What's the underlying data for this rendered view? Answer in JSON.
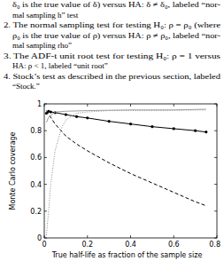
{
  "text_lines": [
    "δ₀ is the true value of δ) versus HA: δ ≠ δ₀, labeled “nor-",
    "mal sampling h” test",
    "2. The normal sampling test for testing H₀: ρ = ρ₀ (where",
    "ρ₀ is the true value of ρ) versus HA: ρ ≠ ρ₀, labeled “nor-",
    "mal sampling rho”",
    "3. The ADF-t unit root test for testing H₀: ρ = 1 versus",
    "HA: ρ < 1, labeled “unit root”",
    "4. Stock’s test as described in the previous section, labeled",
    "“Stock.”"
  ],
  "chart_data": {
    "type": "line",
    "x_label": "True half-life as fraction of the sample size",
    "y_label": "Monte Carlo coverage",
    "xlim": [
      0,
      0.8
    ],
    "ylim": [
      0,
      1
    ],
    "xticks": [
      0,
      0.2,
      0.4,
      0.6,
      0.8
    ],
    "yticks": [
      0,
      0.2,
      0.4,
      0.6,
      0.8,
      1
    ],
    "grid": false,
    "series": [
      {
        "color": "#000000",
        "line_style": "solid",
        "marker": "dot",
        "x": [
          0.01,
          0.02,
          0.03,
          0.05,
          0.1,
          0.15,
          0.2,
          0.3,
          0.4,
          0.5,
          0.6,
          0.7,
          0.75
        ],
        "values": [
          0.93,
          0.945,
          0.94,
          0.935,
          0.92,
          0.905,
          0.895,
          0.87,
          0.85,
          0.83,
          0.815,
          0.8,
          0.79
        ]
      },
      {
        "color": "#000000",
        "line_style": "dashed",
        "marker": "none",
        "x": [
          0.01,
          0.03,
          0.05,
          0.1,
          0.15,
          0.2,
          0.3,
          0.4,
          0.5,
          0.6,
          0.7,
          0.75
        ],
        "values": [
          0.95,
          0.9,
          0.85,
          0.76,
          0.7,
          0.65,
          0.56,
          0.48,
          0.41,
          0.34,
          0.27,
          0.24
        ]
      },
      {
        "color": "#888888",
        "line_style": "dotted",
        "marker": "none",
        "x": [
          0.01,
          0.02,
          0.03,
          0.05,
          0.08,
          0.1,
          0.15,
          0.2,
          0.3,
          0.5,
          0.75
        ],
        "values": [
          0.02,
          0.2,
          0.4,
          0.65,
          0.82,
          0.88,
          0.93,
          0.94,
          0.95,
          0.95,
          0.955
        ]
      },
      {
        "color": "#a0a0a0",
        "line_style": "solid",
        "marker": "none",
        "x": [
          0.01,
          0.02,
          0.05,
          0.1,
          0.2,
          0.4,
          0.6,
          0.75
        ],
        "values": [
          0.86,
          0.9,
          0.94,
          0.945,
          0.95,
          0.955,
          0.955,
          0.96
        ]
      }
    ]
  }
}
